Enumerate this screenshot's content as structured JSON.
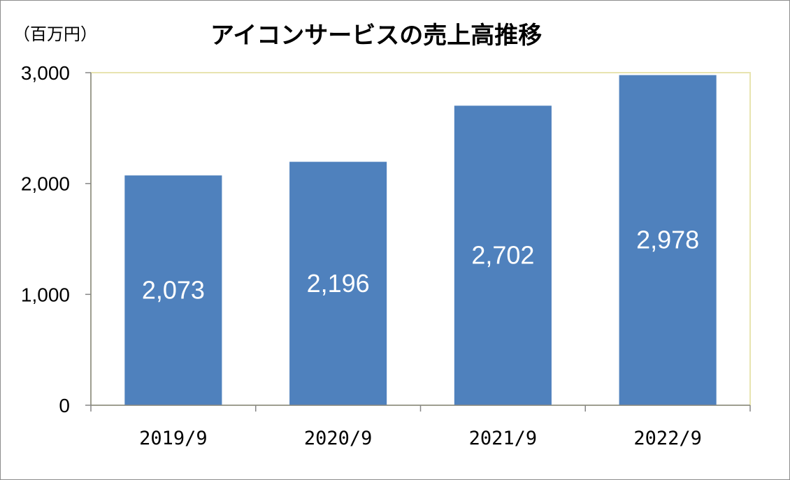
{
  "chart_data": {
    "type": "bar",
    "title": "アイコンサービスの売上高推移",
    "unit_label": "（百万円）",
    "categories": [
      "2019/9",
      "2020/9",
      "2021/9",
      "2022/9"
    ],
    "values": [
      2073,
      2196,
      2702,
      2978
    ],
    "value_labels": [
      "2,073",
      "2,196",
      "2,702",
      "2,978"
    ],
    "ylim": [
      0,
      3000
    ],
    "yticks": [
      0,
      1000,
      2000,
      3000
    ],
    "ytick_labels": [
      "0",
      "1,000",
      "2,000",
      "3,000"
    ],
    "bar_color": "#4f81bd",
    "plot_border_color": "#e8e4b0",
    "grid": false,
    "legend": "none"
  }
}
